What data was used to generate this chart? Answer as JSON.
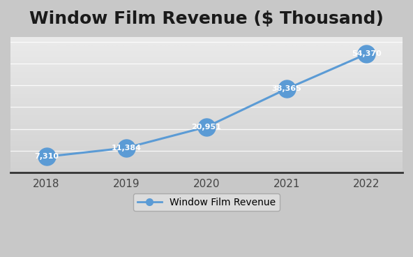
{
  "title": "Window Film Revenue ($ Thousand)",
  "years": [
    2018,
    2019,
    2020,
    2021,
    2022
  ],
  "values": [
    7310,
    11384,
    20951,
    38365,
    54370
  ],
  "labels": [
    "7,310",
    "11,384",
    "20,951",
    "38,365",
    "54,370"
  ],
  "line_color": "#5B9BD5",
  "marker_color": "#5B9BD5",
  "label_color": "#FFFFFF",
  "bg_light": "#E8E8E8",
  "bg_dark": "#C8C8C8",
  "legend_label": "Window Film Revenue",
  "ylim": [
    0,
    62000
  ],
  "title_fontsize": 18,
  "label_fontsize": 8,
  "tick_fontsize": 11,
  "legend_fontsize": 10,
  "grid_color": "#BEBEBE",
  "marker_size": 18,
  "line_width": 2.2
}
